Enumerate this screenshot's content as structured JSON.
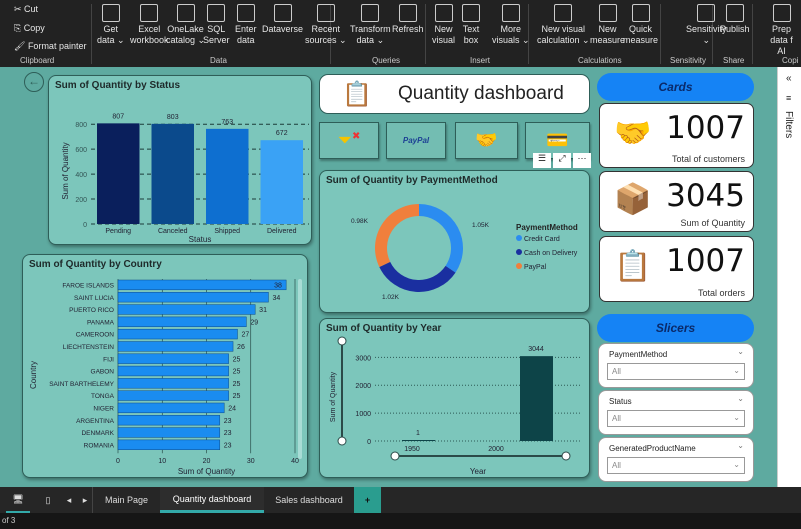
{
  "ribbon": {
    "clipboard": {
      "cut": "Cut",
      "copy": "Copy",
      "format_painter": "Format painter",
      "group": "Clipboard"
    },
    "data": {
      "group": "Data",
      "items": [
        [
          "Get",
          "data ⌄"
        ],
        [
          "Excel",
          "workbook"
        ],
        [
          "OneLake",
          "catalog ⌄"
        ],
        [
          "SQL",
          "Server"
        ],
        [
          "Enter",
          "data"
        ],
        [
          "Dataverse",
          ""
        ],
        [
          "Recent",
          "sources ⌄"
        ]
      ]
    },
    "queries": {
      "group": "Queries",
      "items": [
        [
          "Transform",
          "data ⌄"
        ],
        [
          "Refresh",
          ""
        ]
      ]
    },
    "insert": {
      "group": "Insert",
      "items": [
        [
          "New",
          "visual"
        ],
        [
          "Text",
          "box"
        ],
        [
          "More",
          "visuals ⌄"
        ]
      ]
    },
    "calculations": {
      "group": "Calculations",
      "items": [
        [
          "New visual",
          "calculation ⌄"
        ],
        [
          "New",
          "measure"
        ],
        [
          "Quick",
          "measure"
        ]
      ]
    },
    "sensitivity": {
      "group": "Sensitivity",
      "items": [
        [
          "Sensitivity",
          "⌄"
        ]
      ]
    },
    "share": {
      "group": "Share",
      "items": [
        [
          "Publish",
          ""
        ]
      ]
    },
    "copilot": {
      "group": "Copi",
      "items": [
        [
          "Prep data f",
          "AI"
        ]
      ]
    }
  },
  "page": {
    "title": "Quantity dashboard",
    "paypal": "PayPal"
  },
  "cards": {
    "header": "Cards",
    "items": [
      {
        "value": "1007",
        "label": "Total of customers"
      },
      {
        "value": "3045",
        "label": "Sum of Quantity"
      },
      {
        "value": "1007",
        "label": "Total orders"
      }
    ]
  },
  "slicers": {
    "header": "Slicers",
    "items": [
      {
        "label": "PaymentMethod",
        "value": "All"
      },
      {
        "label": "Status",
        "value": "All"
      },
      {
        "label": "GeneratedProductName",
        "value": "All"
      }
    ]
  },
  "filters_pane": {
    "label": "Filters"
  },
  "tabs": {
    "items": [
      "Main Page",
      "Quantity dashboard",
      "Sales dashboard"
    ],
    "active": 1,
    "add": "+"
  },
  "status_bar": {
    "text": "of 3"
  },
  "chart_data": [
    {
      "type": "bar",
      "title": "Sum of Quantity by Status",
      "xlabel": "Status",
      "ylabel": "Sum of Quantity",
      "categories": [
        "Pending",
        "Canceled",
        "Shipped",
        "Delivered"
      ],
      "values": [
        807,
        803,
        763,
        672
      ],
      "colors": [
        "#0a1f5c",
        "#0b4a8c",
        "#0e6fd0",
        "#3aa2f5"
      ],
      "yticks": [
        "0",
        "200",
        "400",
        "600",
        "800"
      ],
      "ylim": [
        0,
        850
      ],
      "grid": true
    },
    {
      "type": "bar",
      "orientation": "horizontal",
      "title": "Sum of Quantity by Country",
      "xlabel": "Sum of Quantity",
      "ylabel": "Country",
      "categories": [
        "FAROE ISLANDS",
        "SAINT LUCIA",
        "PUERTO RICO",
        "PANAMA",
        "CAMEROON",
        "LIECHTENSTEIN",
        "FIJI",
        "GABON",
        "SAINT BARTHELEMY",
        "TONGA",
        "NIGER",
        "ARGENTINA",
        "DENMARK",
        "ROMANIA"
      ],
      "values": [
        38,
        34,
        31,
        29,
        27,
        26,
        25,
        25,
        25,
        25,
        24,
        23,
        23,
        23
      ],
      "xticks": [
        "0",
        "10",
        "20",
        "30",
        "40"
      ],
      "xlim": [
        0,
        40
      ],
      "color": "#1a8cf0",
      "grid": true
    },
    {
      "type": "pie",
      "title": "Sum of Quantity by PaymentMethod",
      "legend_title": "PaymentMethod",
      "series": [
        {
          "name": "Credit Card",
          "value": 1050,
          "label": "1.05K",
          "color": "#2b8cf0"
        },
        {
          "name": "Cash on Delivery",
          "value": 1020,
          "label": "1.02K",
          "color": "#1a2fa0"
        },
        {
          "name": "PayPal",
          "value": 980,
          "label": "0.98K",
          "color": "#f07f3c"
        }
      ],
      "legend_position": "right"
    },
    {
      "type": "bar",
      "title": "Sum of Quantity by Year",
      "xlabel": "Year",
      "ylabel": "Sum of Quantity",
      "x": [
        1950,
        2023
      ],
      "values": [
        1,
        3044
      ],
      "data_labels": [
        "1",
        "3044"
      ],
      "xticks": [
        "1950",
        "2000"
      ],
      "yticks": [
        "0",
        "1000",
        "2000",
        "3000"
      ],
      "ylim": [
        0,
        3300
      ],
      "color": "#0d4448",
      "grid": true
    }
  ]
}
